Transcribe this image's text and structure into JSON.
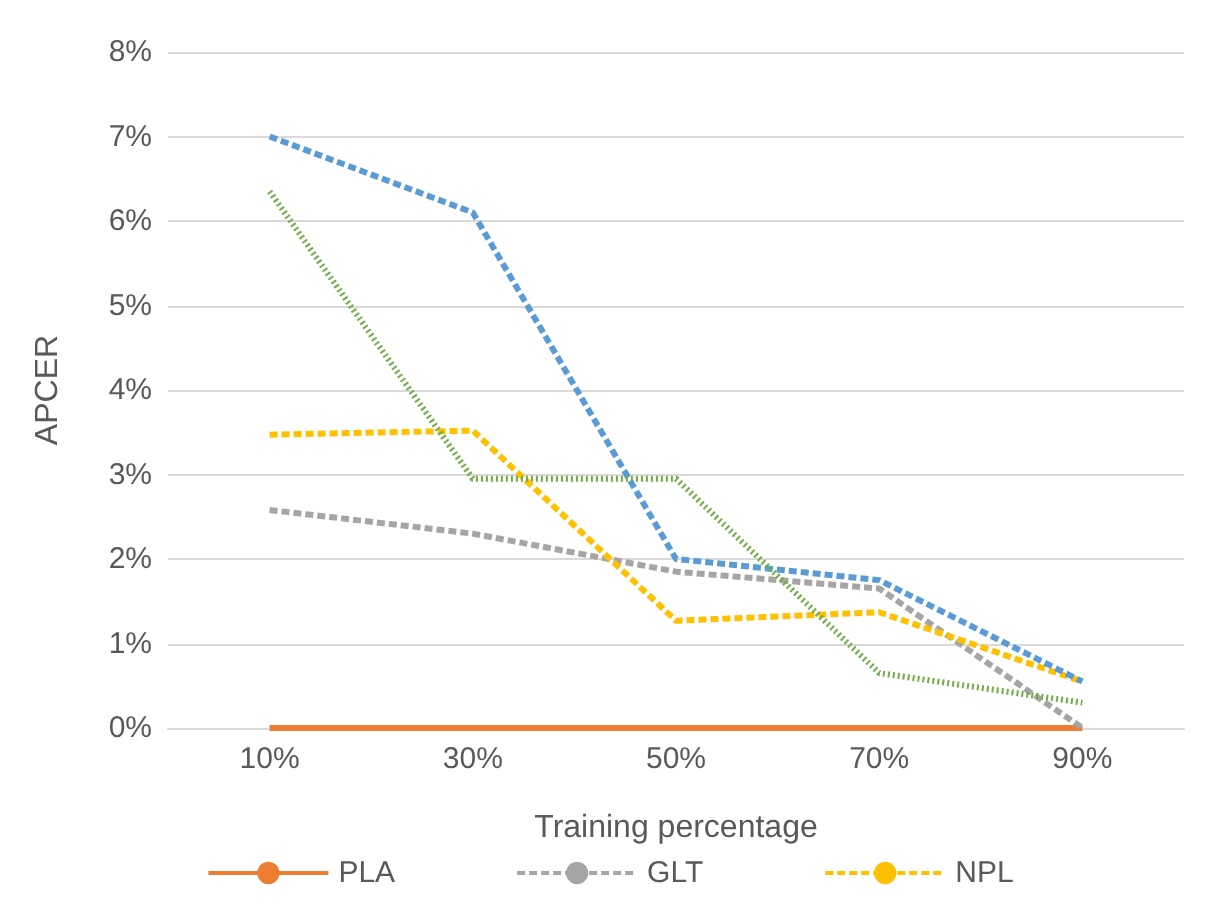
{
  "chart_data": {
    "type": "line",
    "xlabel": "Training percentage",
    "ylabel": "APCER",
    "categories": [
      "10%",
      "30%",
      "50%",
      "70%",
      "90%"
    ],
    "series": [
      {
        "name": "PLA",
        "color": "#ed7d31",
        "line_style": "solid",
        "values": [
          0,
          0,
          0,
          0,
          0
        ]
      },
      {
        "name": "GLT",
        "color": "#a5a5a5",
        "line_style": "dashed",
        "values": [
          2.58,
          2.3,
          1.85,
          1.65,
          0
        ]
      },
      {
        "name": "NPL",
        "color": "#ffc000",
        "line_style": "dashed",
        "values": [
          3.47,
          3.52,
          1.27,
          1.37,
          0.55
        ]
      },
      {
        "color": "#5b9bd5",
        "line_style": "dashed",
        "values": [
          7.0,
          6.1,
          2.0,
          1.75,
          0.55
        ]
      },
      {
        "color": "#70ad47",
        "line_style": "dotted",
        "values": [
          6.35,
          2.95,
          2.95,
          0.65,
          0.3
        ]
      }
    ],
    "ylim": [
      0,
      8
    ],
    "yticks": [
      {
        "value": 0,
        "label": "0%"
      },
      {
        "value": 1,
        "label": "1%"
      },
      {
        "value": 2,
        "label": "2%"
      },
      {
        "value": 3,
        "label": "3%"
      },
      {
        "value": 4,
        "label": "4%"
      },
      {
        "value": 5,
        "label": "5%"
      },
      {
        "value": 6,
        "label": "6%"
      },
      {
        "value": 7,
        "label": "7%"
      },
      {
        "value": 8,
        "label": "8%"
      }
    ],
    "grid": "y",
    "legend": "bottom",
    "marker": "none"
  }
}
